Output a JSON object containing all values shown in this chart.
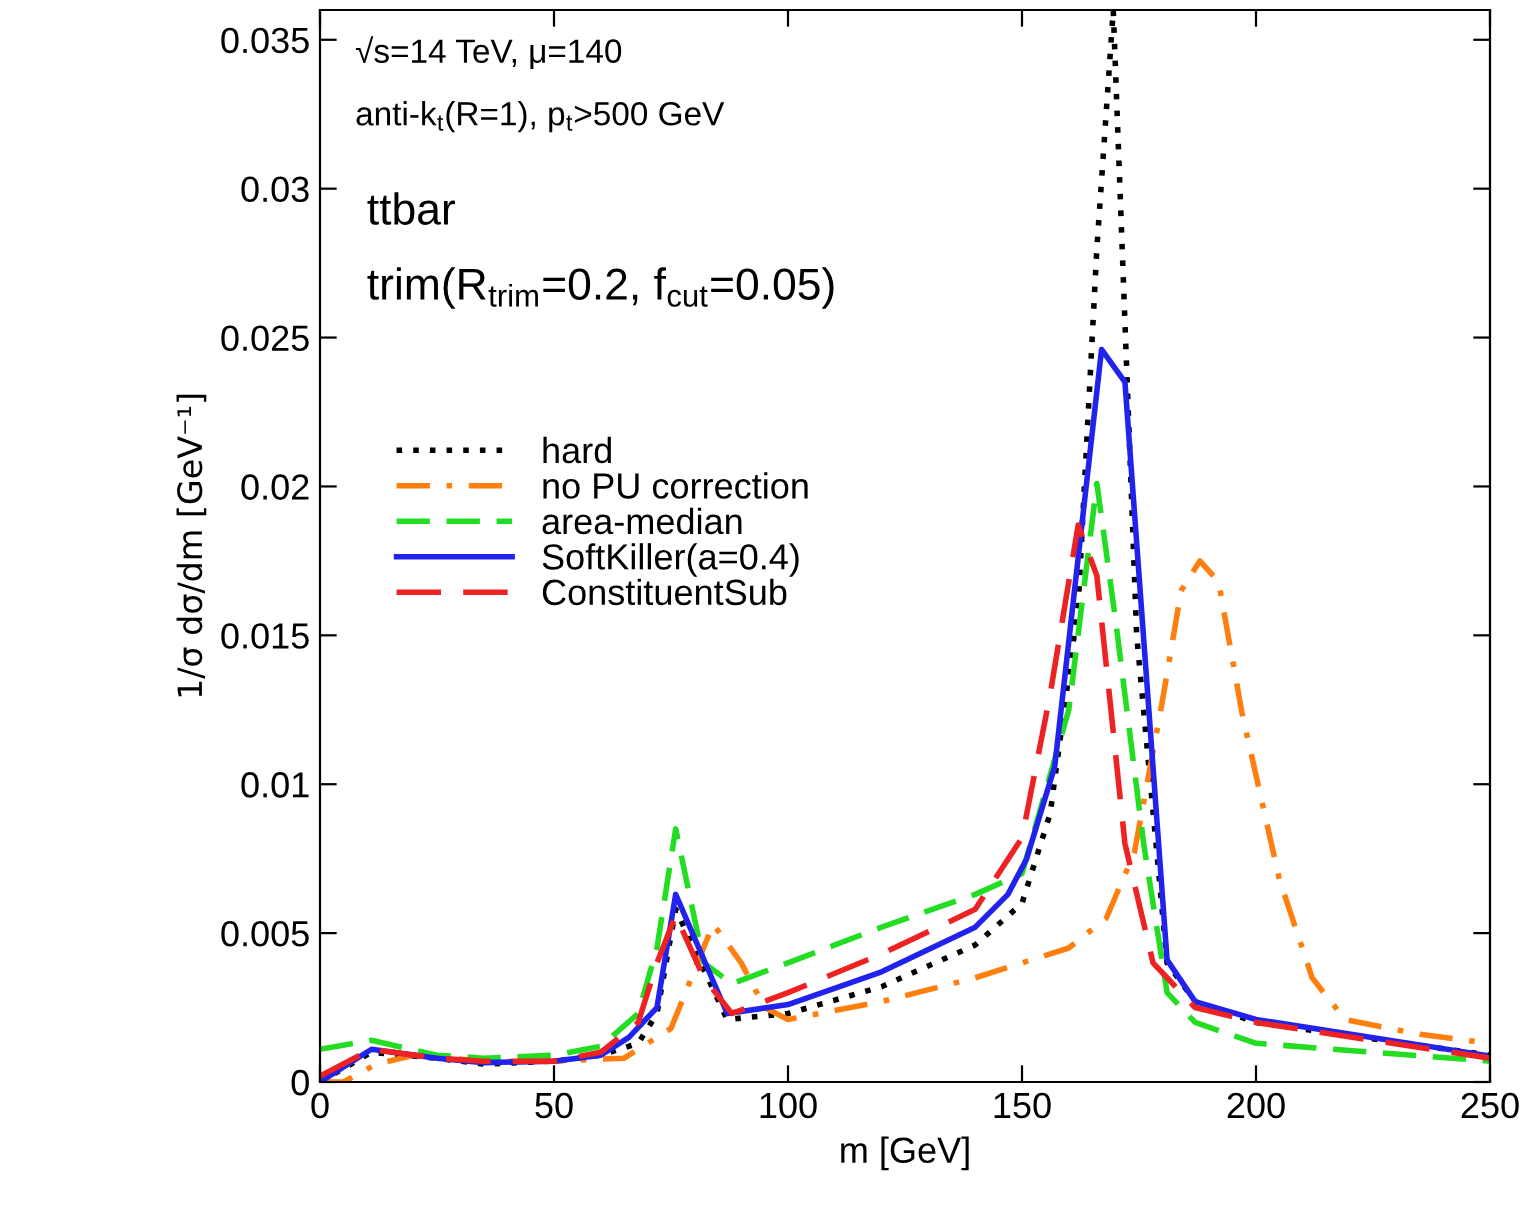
{
  "chart_data": {
    "type": "line",
    "xlabel": "m [GeV]",
    "ylabel": "1/σ dσ/dm [GeV⁻¹]",
    "xlim": [
      0,
      250
    ],
    "xticks": [
      0,
      50,
      100,
      150,
      200,
      250
    ],
    "ylim": [
      0,
      0.036
    ],
    "yticks": [
      0,
      0.005,
      0.01,
      0.015,
      0.02,
      0.025,
      0.03,
      0.035
    ],
    "grid": false,
    "legend": "left",
    "marker": "none",
    "annotations": [
      "√s=14 TeV, μ=140",
      "anti-k$_{t}$(R=1), p$_{t}$>500 GeV",
      "ttbar",
      "trim(R$_{trim}$=0.2, f$_{cut}$=0.05)"
    ],
    "series": [
      {
        "name": "hard",
        "color": "#000000",
        "line_style": "dotted",
        "x": [
          0,
          11,
          25,
          35,
          50,
          60,
          68,
          72,
          76,
          87,
          100,
          120,
          140,
          150,
          156,
          162,
          166,
          169.5,
          174.5,
          181,
          187,
          200,
          250
        ],
        "values": [
          0,
          0.001,
          0.0008,
          0.0006,
          0.0007,
          0.0009,
          0.0013,
          0.0023,
          0.0058,
          0.0021,
          0.0023,
          0.0032,
          0.0046,
          0.006,
          0.009,
          0.016,
          0.028,
          0.036,
          0.015,
          0.004,
          0.0027,
          0.002,
          0.0009
        ]
      },
      {
        "name": "no PU correction",
        "color": "#ff7f0e",
        "line_style": "dashdot",
        "x": [
          0,
          5,
          12,
          20,
          35,
          50,
          65,
          75,
          84,
          90,
          95,
          100,
          120,
          140,
          160,
          168,
          174,
          180,
          184,
          188,
          192,
          197,
          205,
          212,
          219,
          235,
          250
        ],
        "values": [
          0,
          0,
          0.0006,
          0.0009,
          0.0007,
          0.0007,
          0.0008,
          0.0018,
          0.0053,
          0.004,
          0.0025,
          0.0021,
          0.0027,
          0.0035,
          0.0045,
          0.0055,
          0.0077,
          0.0128,
          0.0165,
          0.0175,
          0.0168,
          0.0124,
          0.0068,
          0.0035,
          0.0021,
          0.0016,
          0.0013
        ]
      },
      {
        "name": "area-median",
        "color": "#22dd22",
        "line_style": "dashed",
        "x": [
          0,
          11,
          25,
          35,
          50,
          60,
          68,
          72,
          76,
          82,
          88,
          100,
          120,
          140,
          150,
          160,
          166,
          170,
          176,
          181,
          187,
          200,
          250
        ],
        "values": [
          0.0011,
          0.0014,
          0.0009,
          0.0008,
          0.0009,
          0.0012,
          0.0023,
          0.0045,
          0.0085,
          0.004,
          0.0033,
          0.004,
          0.0052,
          0.0063,
          0.007,
          0.0125,
          0.0201,
          0.0155,
          0.008,
          0.003,
          0.002,
          0.0013,
          0.0007
        ]
      },
      {
        "name": "SoftKiller(a=0.4)",
        "color": "#2222ee",
        "line_style": "solid",
        "x": [
          0,
          11,
          25,
          35,
          50,
          60,
          66,
          72,
          76,
          87,
          100,
          120,
          140,
          147,
          151,
          157,
          167,
          172,
          181,
          187,
          200,
          249
        ],
        "values": [
          0,
          0.0011,
          0.0008,
          0.00065,
          0.0007,
          0.0009,
          0.0015,
          0.0025,
          0.0063,
          0.0023,
          0.0026,
          0.0037,
          0.0052,
          0.0063,
          0.0075,
          0.0106,
          0.0246,
          0.0235,
          0.0041,
          0.0027,
          0.0021,
          0.0009
        ]
      },
      {
        "name": "ConstituentSub",
        "color": "#ee2222",
        "line_style": "dashed",
        "x": [
          0,
          11,
          25,
          35,
          50,
          60,
          68,
          72,
          76,
          82,
          88,
          100,
          120,
          140,
          150,
          156,
          162,
          166,
          172,
          178,
          181,
          187,
          200,
          250
        ],
        "values": [
          0.0002,
          0.0011,
          0.0008,
          0.0007,
          0.0007,
          0.001,
          0.002,
          0.004,
          0.0056,
          0.0035,
          0.0023,
          0.003,
          0.0043,
          0.0058,
          0.0082,
          0.013,
          0.0187,
          0.017,
          0.008,
          0.004,
          0.0035,
          0.0025,
          0.002,
          0.0008
        ]
      }
    ]
  }
}
